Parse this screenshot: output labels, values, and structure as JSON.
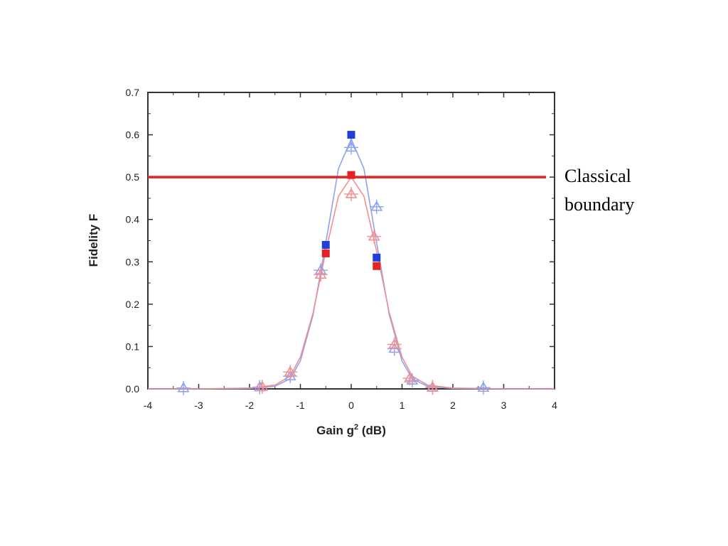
{
  "chart_data": {
    "type": "scatter",
    "xlabel": "Gain g",
    "xlabel_sup": "2",
    "xlabel_unit": " (dB)",
    "ylabel": "Fidelity F",
    "xlim": [
      -4,
      4
    ],
    "ylim": [
      0,
      0.7
    ],
    "xticks": [
      "-4",
      "-3",
      "-2",
      "-1",
      "0",
      "1",
      "2",
      "3",
      "4"
    ],
    "yticks": [
      "0.0",
      "0.1",
      "0.2",
      "0.3",
      "0.4",
      "0.5",
      "0.6",
      "0.7"
    ],
    "classical_boundary": 0.5,
    "annotation": [
      "Classical",
      "boundary"
    ],
    "colors": {
      "blue": "#1f3fdc",
      "red": "#e52222",
      "blue_light": "#8ea2ee",
      "red_light": "#f09090",
      "axis": "#333333"
    },
    "series": [
      {
        "marker": "filled-square",
        "color": "blue",
        "x": [
          -0.5,
          0,
          0.5
        ],
        "y": [
          0.34,
          0.6,
          0.31
        ]
      },
      {
        "marker": "filled-square",
        "color": "red",
        "x": [
          -0.5,
          0,
          0.5
        ],
        "y": [
          0.32,
          0.505,
          0.29
        ]
      },
      {
        "marker": "open-triangle",
        "color": "blue_light",
        "x": [
          -3.3,
          -1.8,
          -1.2,
          -0.6,
          0,
          0.5,
          0.85,
          1.2,
          1.6,
          2.6
        ],
        "y": [
          0.002,
          0.004,
          0.03,
          0.28,
          0.57,
          0.43,
          0.095,
          0.02,
          0.004,
          0.003
        ]
      },
      {
        "marker": "open-triangle",
        "color": "red_light",
        "x": [
          -1.75,
          -1.2,
          -0.6,
          0,
          0.45,
          0.85,
          1.15,
          1.6
        ],
        "y": [
          0.005,
          0.04,
          0.27,
          0.46,
          0.36,
          0.105,
          0.025,
          0.003
        ]
      },
      {
        "marker": "line",
        "color": "blue_light",
        "x": [
          -4,
          -3,
          -2,
          -1.5,
          -1.2,
          -1,
          -0.75,
          -0.5,
          -0.25,
          0,
          0.25,
          0.5,
          0.75,
          1,
          1.2,
          1.5,
          2,
          3,
          4
        ],
        "y": [
          0,
          0,
          0.001,
          0.006,
          0.024,
          0.066,
          0.175,
          0.345,
          0.52,
          0.59,
          0.52,
          0.345,
          0.175,
          0.066,
          0.024,
          0.006,
          0.001,
          0,
          0
        ]
      },
      {
        "marker": "line",
        "color": "red_light",
        "x": [
          -4,
          -3,
          -2,
          -1.5,
          -1.2,
          -1,
          -0.75,
          -0.5,
          -0.25,
          0,
          0.25,
          0.5,
          0.75,
          1,
          1.2,
          1.5,
          2,
          3,
          4
        ],
        "y": [
          0,
          0,
          0.002,
          0.009,
          0.03,
          0.075,
          0.18,
          0.325,
          0.455,
          0.5,
          0.455,
          0.325,
          0.18,
          0.075,
          0.03,
          0.009,
          0.002,
          0,
          0
        ]
      }
    ]
  }
}
